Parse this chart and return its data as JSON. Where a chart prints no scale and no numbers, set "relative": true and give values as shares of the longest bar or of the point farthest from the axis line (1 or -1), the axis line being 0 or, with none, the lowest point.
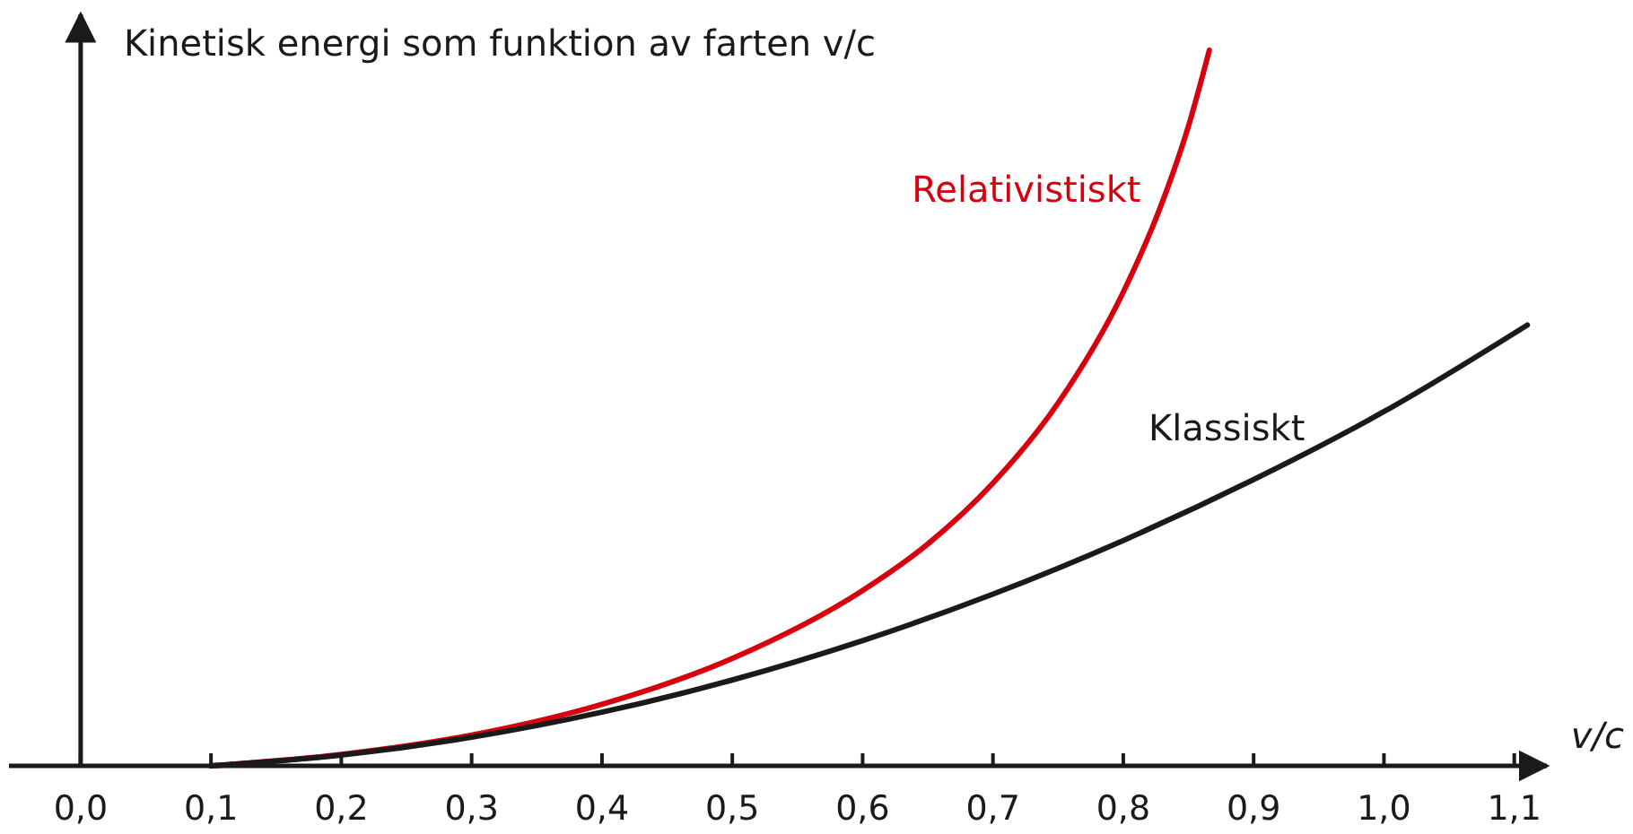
{
  "chart_data": {
    "type": "line",
    "relative": true,
    "ylabel": "Kinetisk energi som funktion av farten v/c",
    "xlabel": "v/c",
    "xlim": [
      -0.055,
      1.125
    ],
    "xticks": [
      {
        "value": 0,
        "label": "0,0"
      },
      {
        "value": 0.1,
        "label": "0,1"
      },
      {
        "value": 0.2,
        "label": "0,2"
      },
      {
        "value": 0.3,
        "label": "0,3"
      },
      {
        "value": 0.4,
        "label": "0,4"
      },
      {
        "value": 0.5,
        "label": "0,5"
      },
      {
        "value": 0.6,
        "label": "0,6"
      },
      {
        "value": 0.7,
        "label": "0,7"
      },
      {
        "value": 0.8,
        "label": "0,8"
      },
      {
        "value": 0.9,
        "label": "0,9"
      },
      {
        "value": 1.0,
        "label": "1,0"
      },
      {
        "value": 1.1,
        "label": "1,1"
      }
    ],
    "series": [
      {
        "name": "Relativistiskt",
        "color": "#d7000f",
        "x": [
          0.1,
          0.2,
          0.3,
          0.4,
          0.5,
          0.6,
          0.65,
          0.7,
          0.75,
          0.8,
          0.83,
          0.85,
          0.866
        ],
        "values": [
          0.0,
          0.016,
          0.043,
          0.086,
          0.15,
          0.245,
          0.31,
          0.395,
          0.507,
          0.662,
          0.788,
          0.894,
          1.0
        ]
      },
      {
        "name": "Klassiskt",
        "color": "#1a1a1a",
        "x": [
          0.1,
          0.2,
          0.3,
          0.4,
          0.5,
          0.6,
          0.7,
          0.8,
          0.9,
          1.0,
          1.11
        ],
        "values": [
          0.0,
          0.015,
          0.04,
          0.075,
          0.12,
          0.175,
          0.24,
          0.315,
          0.4,
          0.495,
          0.616
        ]
      }
    ]
  }
}
